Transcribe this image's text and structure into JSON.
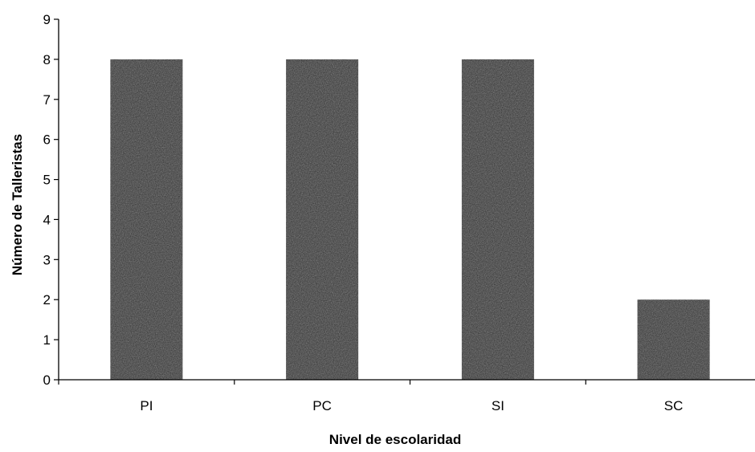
{
  "chart_data": {
    "type": "bar",
    "categories": [
      "PI",
      "PC",
      "SI",
      "SC"
    ],
    "values": [
      8,
      8,
      8,
      2
    ],
    "title": "",
    "xlabel": "Nivel de escolaridad",
    "ylabel": "Número de Talleristas",
    "ylim": [
      0,
      9
    ],
    "yticks": [
      "0",
      "1",
      "2",
      "3",
      "4",
      "5",
      "6",
      "7",
      "8",
      "9"
    ],
    "grid": false,
    "legend": "none",
    "bar_color": "#262626"
  }
}
